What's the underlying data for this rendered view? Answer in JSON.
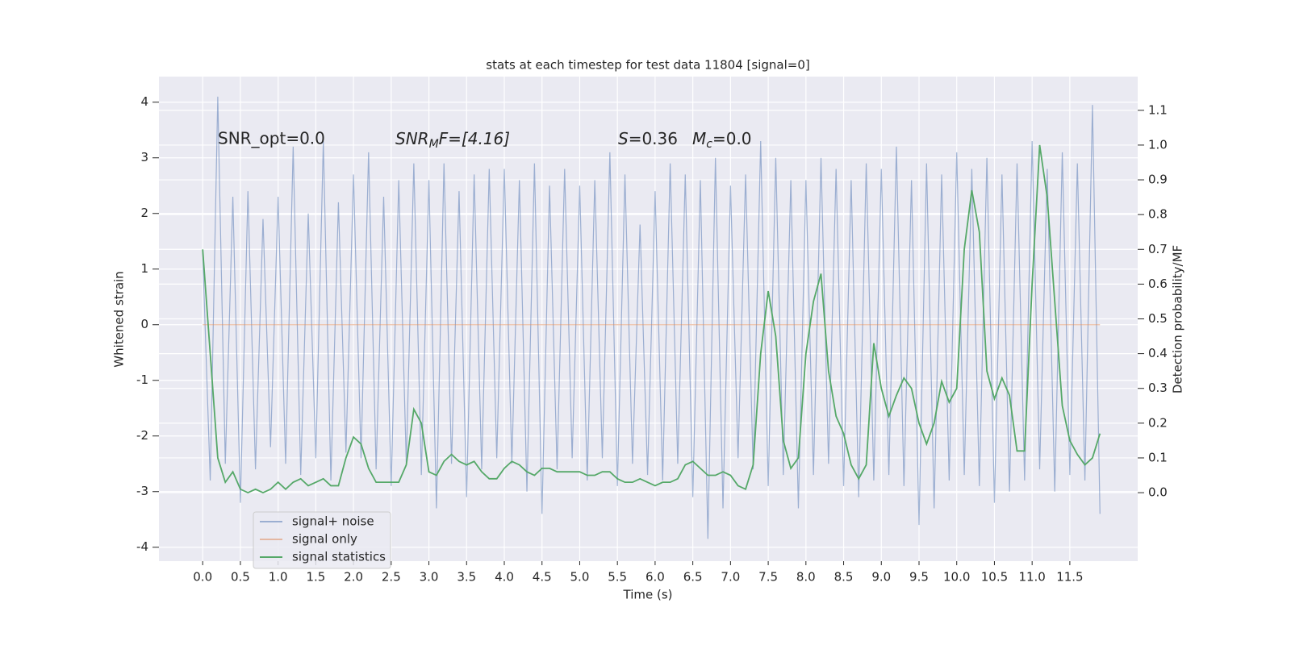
{
  "chart_data": {
    "type": "line",
    "title": "stats at each timestep for test data 11804 [signal=0]",
    "xlabel": "Time (s)",
    "ylabel": "Whitened strain",
    "y2label": "Detection probability/MF",
    "annotations": [
      "SNR_opt=0.0",
      [
        "SNR",
        "M",
        "F=[4.16]"
      ],
      [
        "S",
        "=0.36"
      ],
      [
        "M",
        "c",
        "=0.0"
      ]
    ],
    "x": [
      0,
      0.1,
      0.2,
      0.3,
      0.4,
      0.5,
      0.6,
      0.7,
      0.8,
      0.9,
      1,
      1.1,
      1.2,
      1.3,
      1.4,
      1.5,
      1.6,
      1.7,
      1.8,
      1.9,
      2,
      2.1,
      2.2,
      2.3,
      2.4,
      2.5,
      2.6,
      2.7,
      2.8,
      2.9,
      3,
      3.1,
      3.2,
      3.3,
      3.4,
      3.5,
      3.6,
      3.7,
      3.8,
      3.9,
      4,
      4.1,
      4.2,
      4.3,
      4.4,
      4.5,
      4.6,
      4.7,
      4.8,
      4.9,
      5,
      5.1,
      5.2,
      5.3,
      5.4,
      5.5,
      5.6,
      5.7,
      5.8,
      5.9,
      6,
      6.1,
      6.2,
      6.3,
      6.4,
      6.5,
      6.6,
      6.7,
      6.8,
      6.9,
      7,
      7.1,
      7.2,
      7.3,
      7.4,
      7.5,
      7.6,
      7.7,
      7.8,
      7.9,
      8,
      8.1,
      8.2,
      8.3,
      8.4,
      8.5,
      8.6,
      8.7,
      8.8,
      8.9,
      9,
      9.1,
      9.2,
      9.3,
      9.4,
      9.5,
      9.6,
      9.7,
      9.8,
      9.9,
      10,
      10.1,
      10.2,
      10.3,
      10.4,
      10.5,
      10.6,
      10.7,
      10.8,
      10.9,
      11,
      11.1,
      11.2,
      11.3,
      11.4,
      11.5,
      11.6,
      11.7,
      11.8,
      11.9
    ],
    "series": [
      {
        "name": "signal+ noise",
        "color": "#4c72b0",
        "values": [
          1.3,
          -2.8,
          4.1,
          -2.5,
          2.3,
          -3.2,
          2.4,
          -2.6,
          1.9,
          -2.2,
          2.3,
          -2.5,
          3.2,
          -2.7,
          2.0,
          -2.4,
          3.3,
          -2.8,
          2.2,
          -2.3,
          2.7,
          -2.4,
          3.1,
          -2.6,
          2.3,
          -2.9,
          2.6,
          -2.5,
          2.9,
          -2.7,
          2.6,
          -3.3,
          2.9,
          -2.5,
          2.4,
          -3.1,
          2.7,
          -2.6,
          2.8,
          -2.4,
          2.8,
          -2.5,
          2.6,
          -3.0,
          2.9,
          -3.4,
          2.5,
          -2.6,
          2.8,
          -2.4,
          2.5,
          -2.8,
          2.6,
          -2.4,
          3.1,
          -2.9,
          2.7,
          -2.5,
          1.8,
          -2.7,
          2.4,
          -2.8,
          2.9,
          -2.5,
          2.7,
          -3.1,
          2.6,
          -3.85,
          3.0,
          -3.3,
          2.5,
          -2.4,
          2.7,
          -2.6,
          3.3,
          -2.9,
          3.0,
          -2.7,
          2.6,
          -3.3,
          2.6,
          -2.7,
          3.0,
          -2.5,
          2.8,
          -2.9,
          2.6,
          -3.1,
          2.9,
          -2.8,
          2.8,
          -2.7,
          3.2,
          -2.9,
          2.6,
          -3.6,
          2.9,
          -3.3,
          2.7,
          -2.8,
          3.1,
          -2.7,
          2.8,
          -2.9,
          3.0,
          -3.2,
          2.7,
          -3.0,
          2.9,
          -2.8,
          3.3,
          -2.6,
          2.8,
          -3.0,
          3.1,
          -2.7,
          2.9,
          -2.8,
          3.95,
          -3.4
        ]
      },
      {
        "name": "signal only",
        "color": "#dd8452",
        "values": [
          0,
          0,
          0,
          0,
          0,
          0,
          0,
          0,
          0,
          0,
          0,
          0,
          0,
          0,
          0,
          0,
          0,
          0,
          0,
          0,
          0,
          0,
          0,
          0,
          0,
          0,
          0,
          0,
          0,
          0,
          0,
          0,
          0,
          0,
          0,
          0,
          0,
          0,
          0,
          0,
          0,
          0,
          0,
          0,
          0,
          0,
          0,
          0,
          0,
          0,
          0,
          0,
          0,
          0,
          0,
          0,
          0,
          0,
          0,
          0,
          0,
          0,
          0,
          0,
          0,
          0,
          0,
          0,
          0,
          0,
          0,
          0,
          0,
          0,
          0,
          0,
          0,
          0,
          0,
          0,
          0,
          0,
          0,
          0,
          0,
          0,
          0,
          0,
          0,
          0,
          0,
          0,
          0,
          0,
          0,
          0,
          0,
          0,
          0,
          0,
          0,
          0,
          0,
          0,
          0,
          0,
          0,
          0,
          0,
          0,
          0,
          0,
          0,
          0,
          0,
          0,
          0,
          0,
          0,
          0
        ]
      },
      {
        "name": "signal statistics",
        "color": "#55a868",
        "axis": "y2",
        "values": [
          0.7,
          0.4,
          0.1,
          0.03,
          0.06,
          0.01,
          0.0,
          0.01,
          0.0,
          0.01,
          0.03,
          0.01,
          0.03,
          0.04,
          0.02,
          0.03,
          0.04,
          0.02,
          0.02,
          0.1,
          0.16,
          0.14,
          0.07,
          0.03,
          0.03,
          0.03,
          0.03,
          0.08,
          0.24,
          0.2,
          0.06,
          0.05,
          0.09,
          0.11,
          0.09,
          0.08,
          0.09,
          0.06,
          0.04,
          0.04,
          0.07,
          0.09,
          0.08,
          0.06,
          0.05,
          0.07,
          0.07,
          0.06,
          0.06,
          0.06,
          0.06,
          0.05,
          0.05,
          0.06,
          0.06,
          0.04,
          0.03,
          0.03,
          0.04,
          0.03,
          0.02,
          0.03,
          0.03,
          0.04,
          0.08,
          0.09,
          0.07,
          0.05,
          0.05,
          0.06,
          0.05,
          0.02,
          0.01,
          0.08,
          0.4,
          0.58,
          0.45,
          0.15,
          0.07,
          0.1,
          0.4,
          0.55,
          0.63,
          0.35,
          0.22,
          0.17,
          0.08,
          0.04,
          0.08,
          0.43,
          0.3,
          0.22,
          0.28,
          0.33,
          0.3,
          0.2,
          0.14,
          0.2,
          0.32,
          0.26,
          0.3,
          0.7,
          0.87,
          0.75,
          0.35,
          0.27,
          0.33,
          0.28,
          0.12,
          0.12,
          0.6,
          1.0,
          0.85,
          0.55,
          0.25,
          0.15,
          0.11,
          0.08,
          0.1,
          0.17
        ]
      }
    ],
    "xlim": [
      -0.58,
      12.4
    ],
    "ylim": [
      -4.25,
      4.46
    ],
    "y2lim": [
      -0.197,
      1.197
    ],
    "xticks": [
      {
        "value": 0,
        "label": "0.0"
      },
      {
        "value": 0.5,
        "label": "0.5"
      },
      {
        "value": 1,
        "label": "1.0"
      },
      {
        "value": 1.5,
        "label": "1.5"
      },
      {
        "value": 2,
        "label": "2.0"
      },
      {
        "value": 2.5,
        "label": "2.5"
      },
      {
        "value": 3,
        "label": "3.0"
      },
      {
        "value": 3.5,
        "label": "3.5"
      },
      {
        "value": 4,
        "label": "4.0"
      },
      {
        "value": 4.5,
        "label": "4.5"
      },
      {
        "value": 5,
        "label": "5.0"
      },
      {
        "value": 5.5,
        "label": "5.5"
      },
      {
        "value": 6,
        "label": "6.0"
      },
      {
        "value": 6.5,
        "label": "6.5"
      },
      {
        "value": 7,
        "label": "7.0"
      },
      {
        "value": 7.5,
        "label": "7.5"
      },
      {
        "value": 8,
        "label": "8.0"
      },
      {
        "value": 8.5,
        "label": "8.5"
      },
      {
        "value": 9,
        "label": "9.0"
      },
      {
        "value": 9.5,
        "label": "9.5"
      },
      {
        "value": 10,
        "label": "10.0"
      },
      {
        "value": 10.5,
        "label": "10.5"
      },
      {
        "value": 11,
        "label": "11.0"
      },
      {
        "value": 11.5,
        "label": "11.5"
      }
    ],
    "yticks": [
      -4,
      -3,
      -2,
      -1,
      0,
      1,
      2,
      3,
      4
    ],
    "y2ticks": [
      {
        "value": 0,
        "label": "0.0"
      },
      {
        "value": 0.1,
        "label": "0.1"
      },
      {
        "value": 0.2,
        "label": "0.2"
      },
      {
        "value": 0.3,
        "label": "0.3"
      },
      {
        "value": 0.4,
        "label": "0.4"
      },
      {
        "value": 0.5,
        "label": "0.5"
      },
      {
        "value": 0.6,
        "label": "0.6"
      },
      {
        "value": 0.7,
        "label": "0.7"
      },
      {
        "value": 0.8,
        "label": "0.8"
      },
      {
        "value": 0.9,
        "label": "0.9"
      },
      {
        "value": 1,
        "label": "1.0"
      },
      {
        "value": 1.1,
        "label": "1.1"
      }
    ],
    "grid": true,
    "legend": "lower left"
  }
}
